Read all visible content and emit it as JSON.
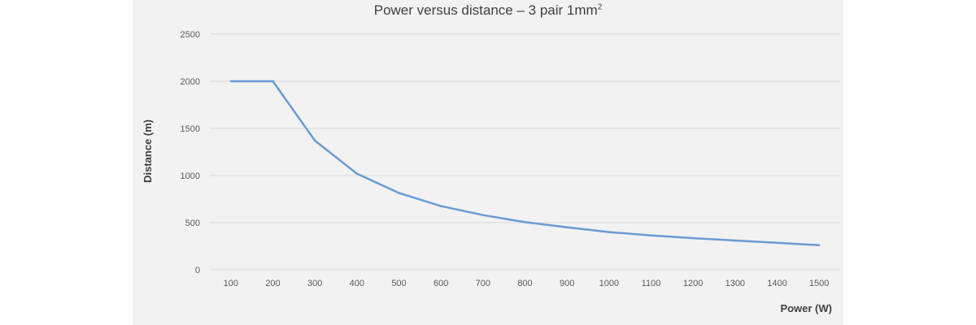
{
  "chart_data": {
    "type": "line",
    "title_main": "Power versus distance – 3 pair 1mm",
    "title_sup": "2",
    "xlabel": "Power (W)",
    "ylabel": "Distance (m)",
    "categories": [
      "100",
      "200",
      "300",
      "400",
      "500",
      "600",
      "700",
      "800",
      "900",
      "1000",
      "1100",
      "1200",
      "1300",
      "1400",
      "1500"
    ],
    "y_ticks": [
      "0",
      "500",
      "1000",
      "1500",
      "2000",
      "2500"
    ],
    "ylim": [
      0,
      2500
    ],
    "grid": "horizontal",
    "series": [
      {
        "values": [
          2000,
          2000,
          1370,
          1020,
          815,
          675,
          580,
          505,
          450,
          400,
          365,
          335,
          310,
          285,
          260
        ],
        "color": "#6a9bd3"
      }
    ]
  }
}
